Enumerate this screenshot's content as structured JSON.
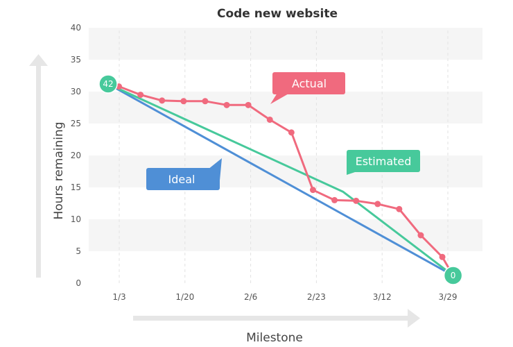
{
  "chart_data": {
    "type": "line",
    "title": "Code new website",
    "xlabel": "Milestone",
    "ylabel": "Hours remaining",
    "x_ticks": [
      "1/3",
      "1/20",
      "2/6",
      "2/23",
      "3/12",
      "3/29"
    ],
    "xlim": [
      0,
      16.5
    ],
    "ylim": [
      0,
      40
    ],
    "y_ticks": [
      0,
      5,
      10,
      15,
      20,
      25,
      30,
      35,
      40
    ],
    "grid": "horizontal bands",
    "series": [
      {
        "name": "Actual",
        "color": "#f06a7e",
        "markers": true,
        "points": [
          [
            0.5,
            30.8
          ],
          [
            1.5,
            29.5
          ],
          [
            2.5,
            28.6
          ],
          [
            3.5,
            28.5
          ],
          [
            4.5,
            28.5
          ],
          [
            5.5,
            27.9
          ],
          [
            6.5,
            27.9
          ],
          [
            7.5,
            25.6
          ],
          [
            8.5,
            23.6
          ],
          [
            9.5,
            14.6
          ],
          [
            10.5,
            13.0
          ],
          [
            11.5,
            12.9
          ],
          [
            12.5,
            12.4
          ],
          [
            13.5,
            11.6
          ],
          [
            14.5,
            7.5
          ],
          [
            15.5,
            4.1
          ],
          [
            16.0,
            1.2
          ]
        ]
      },
      {
        "name": "Estimated",
        "color": "#47c99b",
        "markers": false,
        "points": [
          [
            0.0,
            31.2
          ],
          [
            10.9,
            14.3
          ],
          [
            16.0,
            1.2
          ]
        ]
      },
      {
        "name": "Ideal",
        "color": "#4f8fd6",
        "markers": false,
        "points": [
          [
            0.0,
            31.2
          ],
          [
            16.0,
            1.2
          ]
        ]
      }
    ],
    "start_marker": {
      "label": "42",
      "x": 0.0,
      "y": 31.2,
      "color": "#47c99b"
    },
    "end_marker": {
      "label": "0",
      "x": 16.0,
      "y": 1.2,
      "color": "#47c99b"
    }
  }
}
